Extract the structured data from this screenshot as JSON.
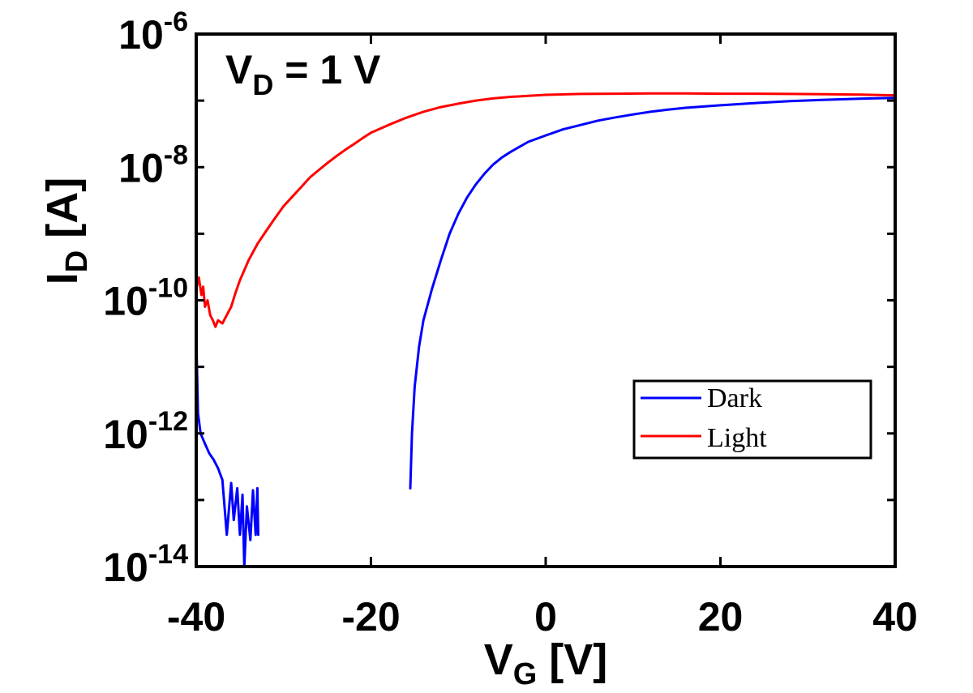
{
  "chart_data": {
    "type": "line",
    "annotation": {
      "main": "V",
      "sub": "D",
      "rest": " = 1 V"
    },
    "xlabel": {
      "main": "V",
      "sub": "G",
      "rest": " [V]"
    },
    "ylabel": {
      "main": "I",
      "sub": "D",
      "rest": " [A]"
    },
    "xlim": [
      -40,
      40
    ],
    "ylim": [
      1e-14,
      1e-06
    ],
    "y_scale": "log",
    "grid": false,
    "legend_position": "lower-right",
    "x_ticks": [
      "-40",
      "-20",
      "0",
      "20",
      "40"
    ],
    "y_ticks": [
      {
        "base": "10",
        "exp": "-6"
      },
      {
        "base": "10",
        "exp": "-8"
      },
      {
        "base": "10",
        "exp": "-10"
      },
      {
        "base": "10",
        "exp": "-12"
      },
      {
        "base": "10",
        "exp": "-14"
      }
    ],
    "series": [
      {
        "name": "Dark",
        "color": "#0000ff",
        "points": [
          [
            -40,
            3e-11
          ],
          [
            -39.8,
            2e-12
          ],
          [
            -39.5,
            1e-12
          ],
          [
            -39,
            7e-13
          ],
          [
            -38.5,
            5e-13
          ],
          [
            -38,
            4e-13
          ],
          [
            -37.5,
            3e-13
          ],
          [
            -37,
            2e-13
          ],
          [
            -36.5,
            3e-14
          ],
          [
            -36,
            1.8e-13
          ],
          [
            -35.7,
            5e-14
          ],
          [
            -35.3,
            1.5e-13
          ],
          [
            -35,
            3e-14
          ],
          [
            -34.7,
            1.2e-13
          ],
          [
            -34.5,
            1e-14
          ],
          [
            -34.2,
            8e-14
          ],
          [
            -33.8,
            2.5e-14
          ],
          [
            -33.5,
            1.4e-13
          ],
          [
            -33.2,
            3e-14
          ],
          [
            -33,
            1.5e-13
          ],
          [
            -32.9,
            3e-14
          ]
        ],
        "points2": [
          [
            -15.5,
            1.5e-13
          ],
          [
            -15.3,
            1e-12
          ],
          [
            -15,
            5e-12
          ],
          [
            -14.5,
            2e-11
          ],
          [
            -14,
            5e-11
          ],
          [
            -13,
            1.5e-10
          ],
          [
            -12,
            4e-10
          ],
          [
            -11,
            1e-09
          ],
          [
            -10,
            2e-09
          ],
          [
            -9,
            3.5e-09
          ],
          [
            -8,
            5.5e-09
          ],
          [
            -7,
            8e-09
          ],
          [
            -6,
            1.1e-08
          ],
          [
            -5,
            1.4e-08
          ],
          [
            -4,
            1.7e-08
          ],
          [
            -2,
            2.4e-08
          ],
          [
            0,
            3e-08
          ],
          [
            2,
            3.7e-08
          ],
          [
            4,
            4.3e-08
          ],
          [
            6,
            5e-08
          ],
          [
            8,
            5.6e-08
          ],
          [
            10,
            6.2e-08
          ],
          [
            12,
            6.8e-08
          ],
          [
            14,
            7.3e-08
          ],
          [
            16,
            7.8e-08
          ],
          [
            20,
            8.5e-08
          ],
          [
            24,
            9.2e-08
          ],
          [
            28,
            9.8e-08
          ],
          [
            32,
            1.03e-07
          ],
          [
            36,
            1.07e-07
          ],
          [
            40,
            1.1e-07
          ]
        ]
      },
      {
        "name": "Light",
        "color": "#ff0000",
        "points": [
          [
            -40,
            1.5e-10
          ],
          [
            -39.7,
            2.2e-10
          ],
          [
            -39.4,
            1.2e-10
          ],
          [
            -39.2,
            1.6e-10
          ],
          [
            -39,
            8e-11
          ],
          [
            -38.7,
            1e-10
          ],
          [
            -38.4,
            6e-11
          ],
          [
            -38.1,
            5e-11
          ],
          [
            -37.8,
            4e-11
          ],
          [
            -37.5,
            5e-11
          ],
          [
            -37,
            4.5e-11
          ],
          [
            -36.5,
            6e-11
          ],
          [
            -36,
            8e-11
          ],
          [
            -35.5,
            1.3e-10
          ],
          [
            -35,
            2e-10
          ],
          [
            -34,
            4e-10
          ],
          [
            -33,
            7e-10
          ],
          [
            -32,
            1.1e-09
          ],
          [
            -31,
            1.7e-09
          ],
          [
            -30,
            2.6e-09
          ],
          [
            -29,
            3.6e-09
          ],
          [
            -28,
            5e-09
          ],
          [
            -27,
            7e-09
          ],
          [
            -26,
            9e-09
          ],
          [
            -25,
            1.15e-08
          ],
          [
            -24,
            1.45e-08
          ],
          [
            -23,
            1.8e-08
          ],
          [
            -22,
            2.2e-08
          ],
          [
            -21,
            2.7e-08
          ],
          [
            -20,
            3.3e-08
          ],
          [
            -18,
            4.3e-08
          ],
          [
            -16,
            5.5e-08
          ],
          [
            -14,
            6.8e-08
          ],
          [
            -12,
            8e-08
          ],
          [
            -10,
            9e-08
          ],
          [
            -8,
            1e-07
          ],
          [
            -6,
            1.08e-07
          ],
          [
            -4,
            1.14e-07
          ],
          [
            -2,
            1.18e-07
          ],
          [
            0,
            1.22e-07
          ],
          [
            4,
            1.26e-07
          ],
          [
            8,
            1.27e-07
          ],
          [
            12,
            1.28e-07
          ],
          [
            16,
            1.28e-07
          ],
          [
            20,
            1.27e-07
          ],
          [
            24,
            1.27e-07
          ],
          [
            28,
            1.26e-07
          ],
          [
            32,
            1.25e-07
          ],
          [
            36,
            1.23e-07
          ],
          [
            40,
            1.2e-07
          ]
        ]
      }
    ]
  },
  "colors": {
    "axis": "#000000",
    "background": "#ffffff"
  }
}
